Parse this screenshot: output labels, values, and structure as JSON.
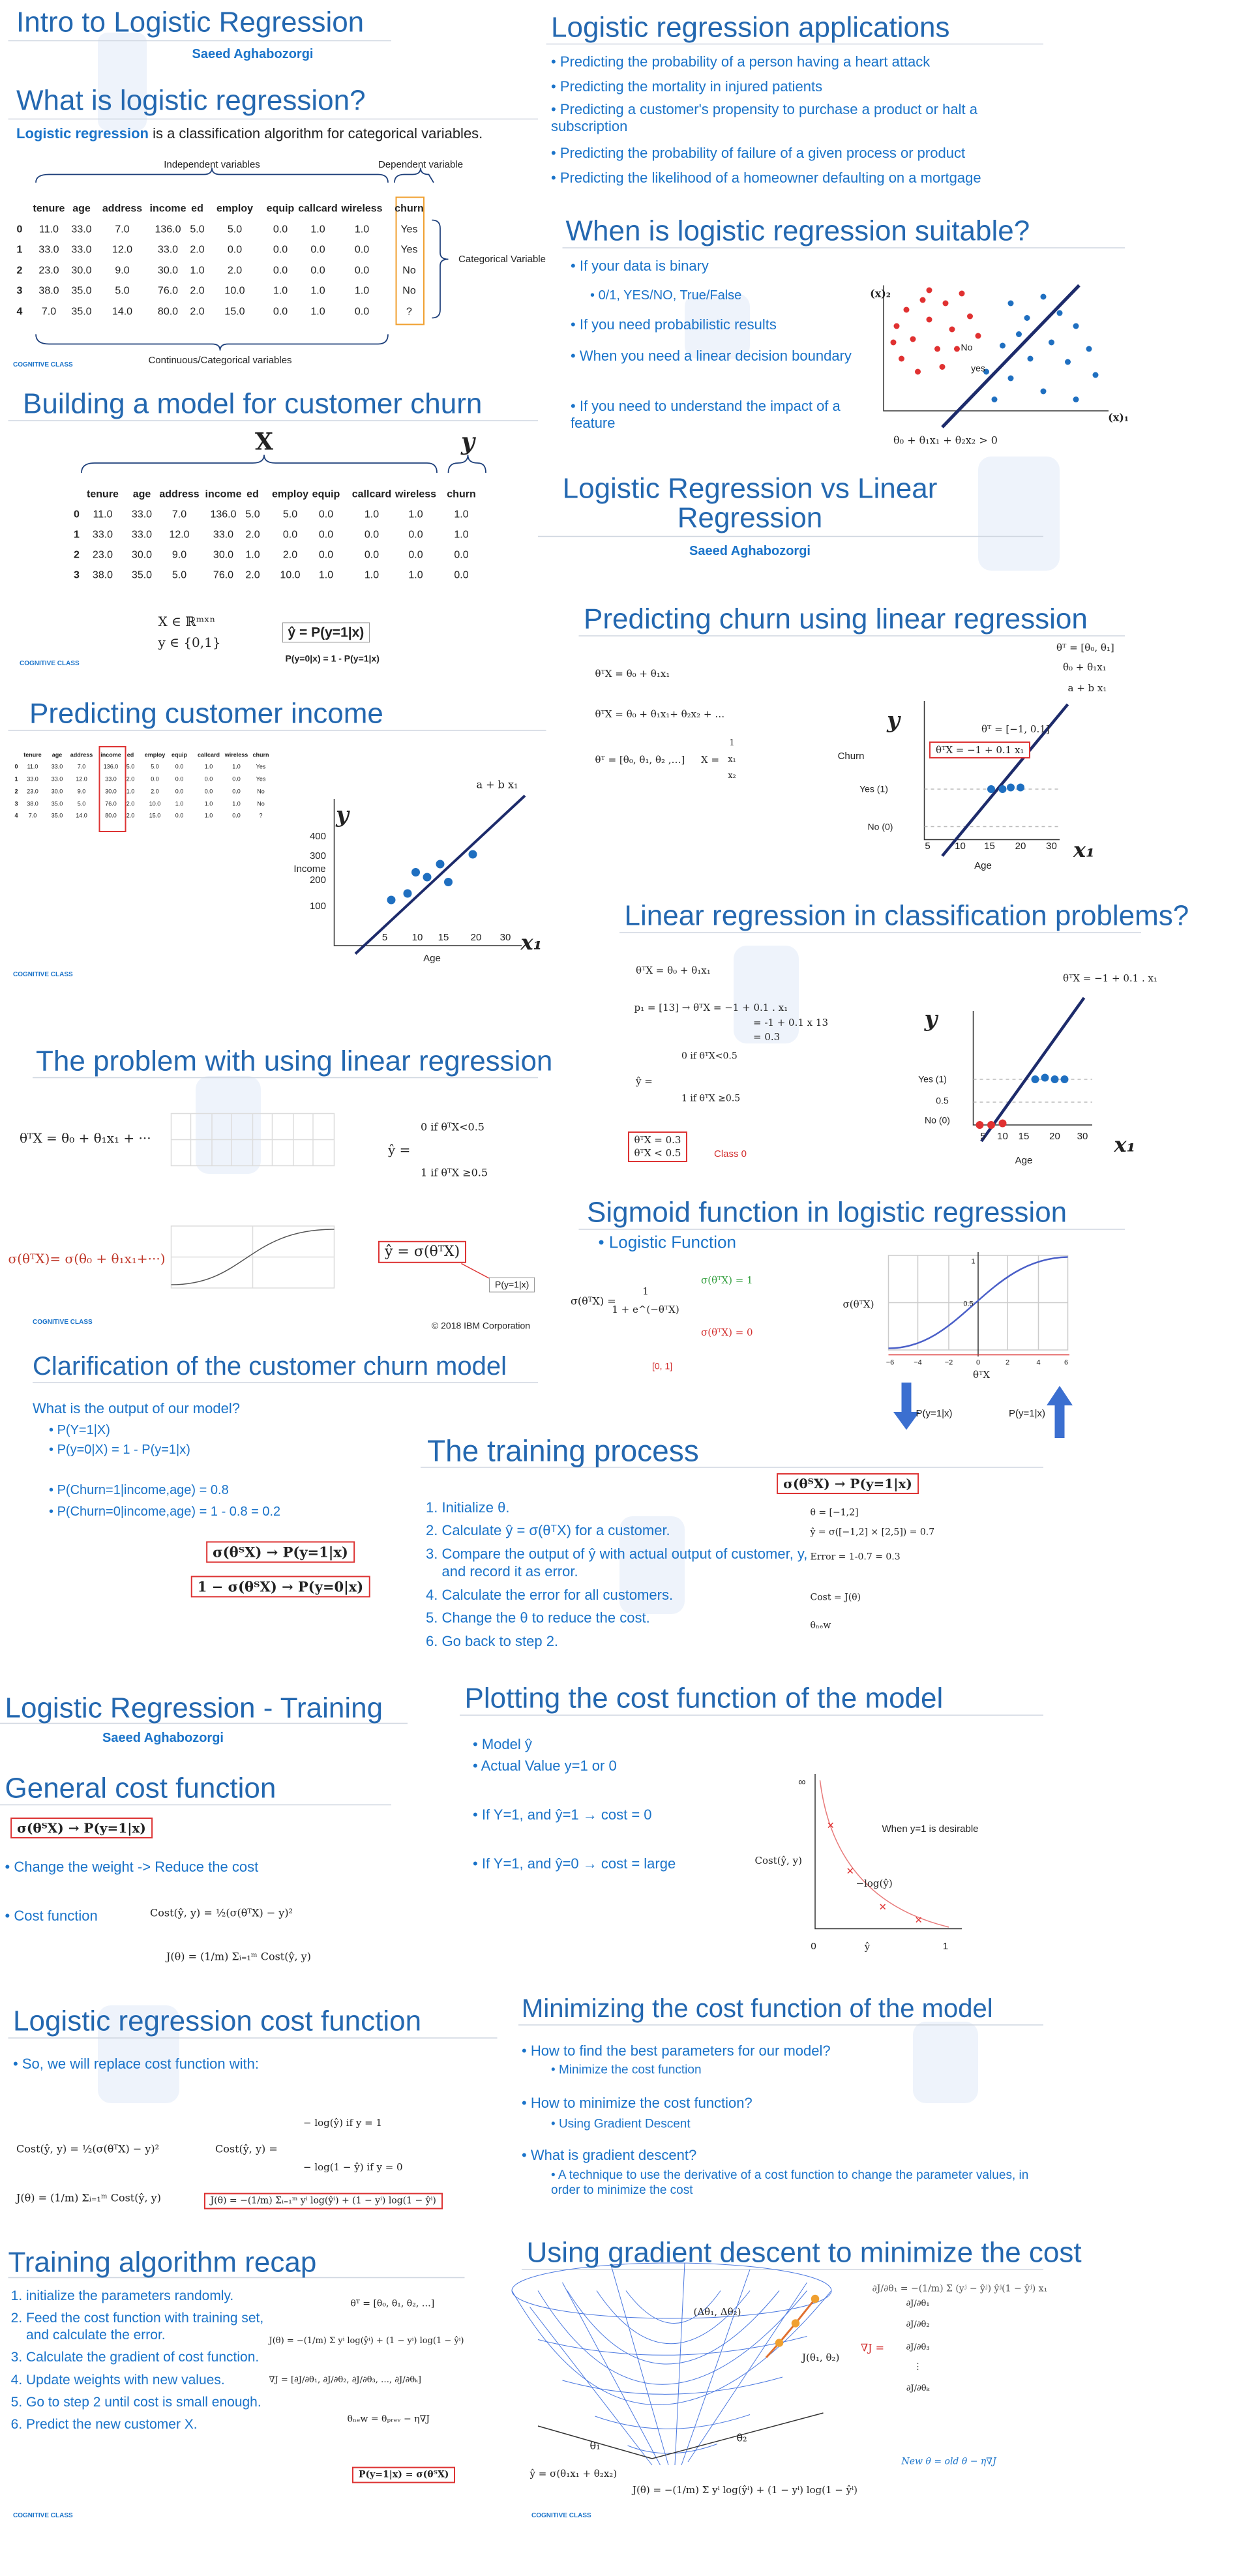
{
  "intro": {
    "title": "Intro to Logistic Regression",
    "author": "Saeed Aghabozorgi"
  },
  "brand": "COGNITIVE CLASS",
  "what": {
    "title": "What is logistic regression?",
    "lead_bold": "Logistic regression",
    "lead": "is a classification algorithm for categorical variables.",
    "independent": "Independent variables",
    "dependent": "Dependent variable",
    "categorical": "Categorical Variable",
    "continuous": "Continuous/Categorical variables",
    "table": {
      "columns": [
        "tenure",
        "age",
        "address",
        "income",
        "ed",
        "employ",
        "equip",
        "callcard",
        "wireless",
        "churn"
      ],
      "rows": [
        [
          "0",
          "11.0",
          "33.0",
          "7.0",
          "136.0",
          "5.0",
          "5.0",
          "0.0",
          "1.0",
          "1.0",
          "Yes"
        ],
        [
          "1",
          "33.0",
          "33.0",
          "12.0",
          "33.0",
          "2.0",
          "0.0",
          "0.0",
          "0.0",
          "0.0",
          "Yes"
        ],
        [
          "2",
          "23.0",
          "30.0",
          "9.0",
          "30.0",
          "1.0",
          "2.0",
          "0.0",
          "0.0",
          "0.0",
          "No"
        ],
        [
          "3",
          "38.0",
          "35.0",
          "5.0",
          "76.0",
          "2.0",
          "10.0",
          "1.0",
          "1.0",
          "1.0",
          "No"
        ],
        [
          "4",
          "7.0",
          "35.0",
          "14.0",
          "80.0",
          "2.0",
          "15.0",
          "0.0",
          "1.0",
          "0.0",
          "?"
        ]
      ]
    }
  },
  "building": {
    "title": "Building a model for customer churn",
    "x_label": "X",
    "y_label": "y",
    "table": {
      "columns": [
        "tenure",
        "age",
        "address",
        "income",
        "ed",
        "employ",
        "equip",
        "callcard",
        "wireless",
        "churn"
      ],
      "rows": [
        [
          "0",
          "11.0",
          "33.0",
          "7.0",
          "136.0",
          "5.0",
          "5.0",
          "0.0",
          "1.0",
          "1.0",
          "1.0"
        ],
        [
          "1",
          "33.0",
          "33.0",
          "12.0",
          "33.0",
          "2.0",
          "0.0",
          "0.0",
          "0.0",
          "0.0",
          "1.0"
        ],
        [
          "2",
          "23.0",
          "30.0",
          "9.0",
          "30.0",
          "1.0",
          "2.0",
          "0.0",
          "0.0",
          "0.0",
          "0.0"
        ],
        [
          "3",
          "38.0",
          "35.0",
          "5.0",
          "76.0",
          "2.0",
          "10.0",
          "1.0",
          "1.0",
          "1.0",
          "0.0"
        ]
      ]
    },
    "domain_x": "X ∈ ℝᵐˣⁿ",
    "domain_y": "y ∈ {0,1}",
    "yhat": "ŷ = P(y=1|x)",
    "complement": "P(y=0|x) = 1 - P(y=1|x)"
  },
  "income": {
    "title": "Predicting customer income",
    "y_label": "y",
    "axis": "Income",
    "yticks": [
      "400",
      "300",
      "200",
      "100"
    ],
    "xticks": [
      "5",
      "10",
      "15",
      "20",
      "30"
    ],
    "x_label": "x₁",
    "x_axis": "Age",
    "line": "a + b x₁"
  },
  "problem": {
    "title": "The problem with using linear regression",
    "eq": "θᵀX = θ₀ + θ₁x₁ + ···",
    "yhat": "ŷ =",
    "case0": "0    if θᵀX<0.5",
    "case1": "1    if θᵀX ≥0.5",
    "sigma_eq": "σ(θᵀX)= σ(θ₀ + θ₁x₁+···)",
    "boxed": "ŷ = σ(θᵀX)",
    "prob": "P(y=1|x)",
    "copyright": "© 2018 IBM Corporation"
  },
  "clarify": {
    "title": "Clarification of the customer churn model",
    "question": "What is the output of our model?",
    "bullets": [
      "P(Y=1|X)",
      "P(y=0|X)  =  1  -  P(y=1|x)",
      "P(Churn=1|income,age) = 0.8",
      "P(Churn=0|income,age) = 1 - 0.8 = 0.2"
    ],
    "map1": {
      "lhs": "σ(θᵀX)",
      "rhs": "P(y=1|x)"
    },
    "map2": {
      "lhs": "1 − σ(θᵀX)",
      "rhs": "P(y=0|x)"
    }
  },
  "apps": {
    "title": "Logistic regression applications",
    "bullets": [
      "Predicting the probability of a person having a heart attack",
      "Predicting the mortality in injured patients",
      "Predicting a customer's propensity to purchase a product or halt a subscription",
      "Predicting the probability of failure of a given process or product",
      "Predicting the likelihood of a homeowner defaulting on a mortgage"
    ]
  },
  "suitable": {
    "title": "When is logistic regression suitable?",
    "bullets": [
      "If your data is binary",
      "If you need probabilistic results",
      "When you need a linear decision boundary",
      "If you need to understand the impact of a feature"
    ],
    "sub": "0/1, YES/NO,  True/False",
    "x2": "(x)₂",
    "x1": "(x)₁",
    "no": "No",
    "yes": "yes",
    "boundary": "θ₀ + θ₁x₁ + θ₂x₂ > 0"
  },
  "vs": {
    "title_lines": [
      "Logistic Regression vs Linear",
      "Regression"
    ],
    "author": "Saeed Aghabozorgi"
  },
  "churnlin": {
    "title": "Predicting churn using linear regression",
    "eqs": [
      "θᵀX = θ₀ + θ₁x₁",
      "θᵀX = θ₀ + θ₁x₁+ θ₂x₂ + …",
      "θᵀ = [θ₀, θ₁, θ₂ ,…]"
    ],
    "xvec_lhs": "X =",
    "xvec": [
      "1",
      "x₁",
      "x₂"
    ],
    "theta_vec": "θᵀ = [θ₀, θ₁]",
    "line1": "θ₀ + θ₁x₁",
    "line2": "a + b x₁",
    "theta_val": "θᵀ = [−1, 0.1]",
    "boxed": "θᵀX = −1 + 0.1 x₁",
    "y": "y",
    "axis": "Churn",
    "yes": "Yes (1)",
    "no": "No (0)",
    "xticks": [
      "5",
      "10",
      "15",
      "20",
      "30"
    ],
    "x1": "x₁",
    "age": "Age"
  },
  "classif": {
    "title": "Linear regression in classification problems?",
    "eq": "θᵀX = θ₀ + θ₁x₁",
    "eq_val": "θᵀX = −1 + 0.1 . x₁",
    "point": "p₁ = [13]",
    "calc": [
      "θᵀX = −1 + 0.1 . x₁",
      "= -1 + 0.1 x 13",
      "= 0.3"
    ],
    "yhat": "ŷ =",
    "case0": "0    if θᵀX<0.5",
    "case1": "1    if θᵀX ≥0.5",
    "result": [
      "θᵀX = 0.3",
      "θᵀX  <  0.5"
    ],
    "cls": "Class 0",
    "y": "y",
    "yes": "Yes (1)",
    "half": "0.5",
    "no": "No (0)",
    "xticks": [
      "5",
      "10",
      "15",
      "20",
      "30"
    ],
    "x1": "x₁",
    "age": "Age"
  },
  "sigmoid": {
    "title": "Sigmoid function in logistic regression",
    "bullet": "Logistic Function",
    "lhs": "σ(θᵀX) =",
    "num": "1",
    "den": "1 + e^(−θᵀX)",
    "one": "σ(θᵀX) = 1",
    "zero": "σ(θᵀX) = 0",
    "range": "[0, 1]",
    "ylab": "σ(θᵀX)",
    "xlab": "θᵀX",
    "xticks": [
      "−6",
      "−4",
      "−2",
      "0",
      "2",
      "4",
      "6"
    ],
    "half": "0.5",
    "top": "1",
    "p_left": "P(y=1|x)",
    "p_right": "P(y=1|x)"
  },
  "training": {
    "title": "The training process",
    "map": {
      "lhs": "σ(θᵀX)",
      "rhs": "P(y=1|x)"
    },
    "steps": [
      "Initialize θ.",
      "Calculate ŷ = σ(θᵀX) for a customer.",
      "Compare the output of ŷ with actual output of customer, y, and record it as error.",
      "Calculate the error for all customers.",
      "Change the θ to reduce the cost.",
      "Go back to step 2."
    ],
    "side": [
      "θ = [−1,2]",
      "ŷ = σ([−1,2] × [2,5]) =  0.7",
      "Error = 1-0.7 = 0.3",
      "Cost = J(θ)",
      "θₙₑw"
    ]
  },
  "lrtrain": {
    "title": "Logistic Regression - Training",
    "author": "Saeed Aghabozorgi",
    "section": "General cost function",
    "map": {
      "lhs": "σ(θᵀX)",
      "rhs": "P(y=1|x)"
    },
    "bullets": [
      "Change the weight  -> Reduce the cost",
      "Cost function"
    ],
    "cost": "Cost(ŷ, y) = ½(σ(θᵀX) − y)²",
    "j": "J(θ) = (1/m) Σᵢ₌₁ᵐ Cost(ŷ, y)"
  },
  "plotcost": {
    "title": "Plotting the cost function of the model",
    "bullets": [
      "Model ŷ",
      "Actual Value y=1 or 0",
      "If Y=1, and ŷ=1  → cost = 0",
      "If Y=1, and ŷ=0  → cost = large"
    ],
    "inf": "∞",
    "note": "When y=1 is desirable",
    "ylab": "Cost(ŷ, y)",
    "curve": "−log(ŷ)",
    "zero": "0",
    "xlab": "ŷ",
    "one": "1"
  },
  "logcost": {
    "title": "Logistic regression cost function",
    "bullet": "So, we will replace cost function with:",
    "cost_old": "Cost(ŷ, y) = ½(σ(θᵀX) − y)²",
    "j_old": "J(θ) = (1/m) Σᵢ₌₁ᵐ Cost(ŷ, y)",
    "cost_new_lhs": "Cost(ŷ, y) =",
    "case1": "− log(ŷ)          if  y = 1",
    "case0": "− log(1 − ŷ)      if  y = 0",
    "j_new": "J(θ) = −(1/m) Σᵢ₌₁ᵐ yⁱ log(ŷⁱ) + (1 − yⁱ) log(1 − ŷⁱ)"
  },
  "minimize": {
    "title": "Minimizing the cost function of the model",
    "items": [
      {
        "q": "How to find the best parameters for our model?",
        "a": "Minimize the cost function"
      },
      {
        "q": "How to minimize the cost function?",
        "a": "Using Gradient Descent"
      },
      {
        "q": "What is gradient descent?",
        "a": "A technique to use the derivative of a cost function to change the parameter values, in order to minimize the cost"
      }
    ]
  },
  "recap": {
    "title": "Training algorithm recap",
    "steps": [
      "initialize the parameters randomly.",
      "Feed the cost function with training set, and calculate the error.",
      "Calculate the gradient of cost function.",
      "Update weights with new values.",
      "Go to step  2  until cost is small enough.",
      "Predict the new customer X."
    ],
    "formulas": [
      "θᵀ = [θ₀, θ₁, θ₂, …]",
      "J(θ) = −(1/m) Σ yⁱ log(ŷⁱ) + (1 − yⁱ) log(1 − ŷⁱ)",
      "∇J = [∂J/∂θ₁, ∂J/∂θ₂, ∂J/∂θ₃, …, ∂J/∂θₖ]",
      "θₙₑw = θₚᵣₑᵥ − η∇J"
    ],
    "boxed": "P(y=1|x) = σ(θᵀX)"
  },
  "gradient": {
    "title": "Using gradient descent to minimize the cost",
    "partial": "∂J/∂θ₁ = −(1/m) Σ (yʲ − ŷʲ) ŷʲ(1 − ŷʲ) x₁",
    "grad_lhs": "∇J =",
    "grad": [
      "∂J/∂θ₁",
      "∂J/∂θ₂",
      "∂J/∂θ₃",
      "⋮",
      "∂J/∂θₖ"
    ],
    "delta": "(Δθ₁, Δθ₂)",
    "j": "J(θ₁, θ₂)",
    "t1": "θ₁",
    "t2": "θ₂",
    "yhat": "ŷ = σ(θ₁x₁ + θ₂x₂)",
    "j_bottom": "J(θ) = −(1/m) Σ yⁱ log(ŷⁱ) + (1 − yⁱ) log(1 − ŷⁱ)",
    "update": "New θ = old θ − η∇J"
  }
}
